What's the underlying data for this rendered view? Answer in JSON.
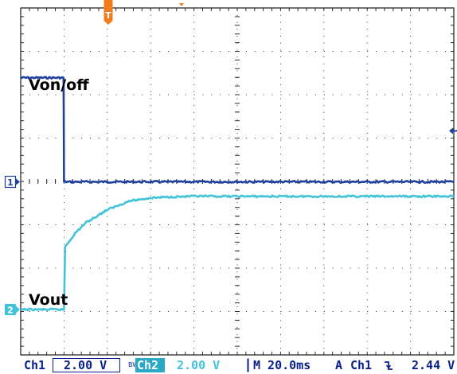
{
  "colors": {
    "background": "#ffffff",
    "grid": "#2a2a2a",
    "ch1": "#1f3f9e",
    "ch2": "#43c3da",
    "trigger": "#f07c1c",
    "status_text": "#0b1f8a"
  },
  "traces": {
    "ch1_label": "Von/off",
    "ch2_label": "Vout"
  },
  "markers": {
    "trigger_position": "T",
    "ch1_ground": "1",
    "ch2_ground": "2",
    "trigger_level_icon": "trigger-level-arrow-icon"
  },
  "status": {
    "ch1_name": "Ch1",
    "ch1_scale": "2.00 V",
    "bw_limit": "BW",
    "ch2_name": "Ch2",
    "ch2_scale": "2.00 V",
    "timebase": "M 20.0ms",
    "acq_mode": "A",
    "trig_source": "Ch1",
    "trig_slope_icon": "falling-edge-icon",
    "trig_level": "2.44 V"
  },
  "chart_data": {
    "type": "line",
    "title": "",
    "xlabel": "",
    "ylabel": "",
    "x_unit": "ms",
    "y_unit": "V",
    "xlim": [
      -20,
      180
    ],
    "trigger_time_ms": 0,
    "series": [
      {
        "name": "Von/off",
        "channel": "Ch1",
        "volts_per_div": 2.0,
        "x": [
          -20,
          -0.2,
          0.0,
          180
        ],
        "y": [
          4.8,
          4.8,
          0.0,
          0.0
        ]
      },
      {
        "name": "Vout",
        "channel": "Ch2",
        "volts_per_div": 2.0,
        "x": [
          -20,
          0.0,
          0.5,
          5,
          10,
          20,
          30,
          40,
          50,
          60,
          80,
          100,
          180
        ],
        "y": [
          0.0,
          0.0,
          2.9,
          3.5,
          4.0,
          4.6,
          5.0,
          5.15,
          5.2,
          5.22,
          5.22,
          5.22,
          5.22
        ]
      }
    ]
  }
}
